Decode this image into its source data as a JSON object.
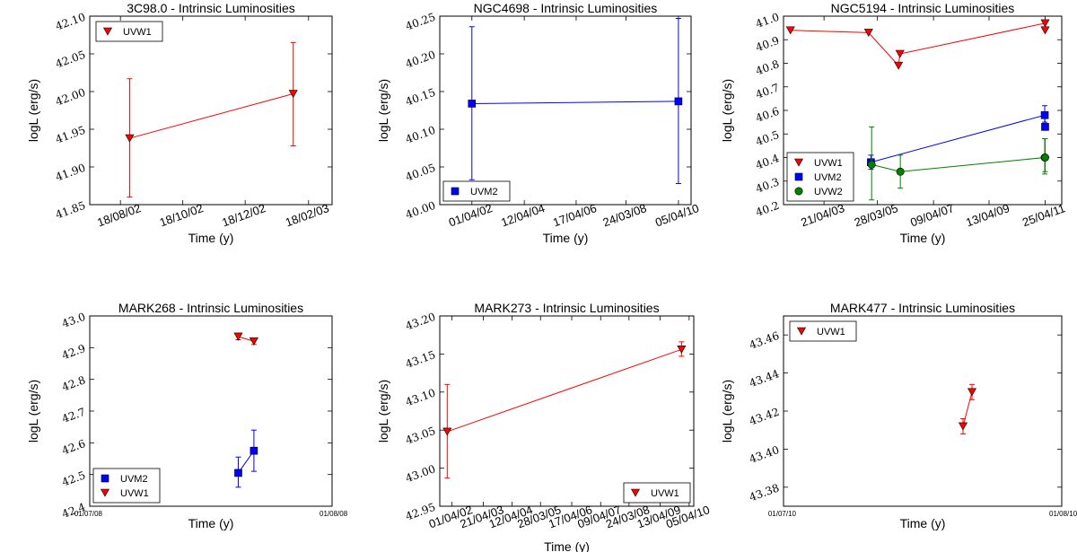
{
  "figure": {
    "ylabel": "logL (erg/s)",
    "xlabel": "Time (y)"
  },
  "chart_data": [
    {
      "type": "line",
      "title": "3C98.0 - Intrinsic Luminosities",
      "xlabel": "Time (y)",
      "ylabel": "logL (erg/s)",
      "x_is_date": true,
      "xlim": [
        "2002-07-19",
        "2003-03-13"
      ],
      "ylim": [
        41.85,
        42.1
      ],
      "xticks": [
        "2002-08-18",
        "2002-10-18",
        "2002-12-18",
        "2003-02-18"
      ],
      "xticklabels": [
        "18/08/02",
        "18/10/02",
        "18/12/02",
        "18/02/03"
      ],
      "xtick_rotation": 20,
      "yticks": [
        41.85,
        41.9,
        41.95,
        42.0,
        42.05,
        42.1
      ],
      "yticklabels": [
        "41.85",
        "41.90",
        "41.95",
        "42.00",
        "42.05",
        "42.10"
      ],
      "legend": "top-left",
      "series": [
        {
          "name": "UVW1",
          "color": "#ff0000",
          "marker": "triangle-down",
          "points": [
            {
              "x": "2002-08-27",
              "y": 41.938,
              "lo": 41.86,
              "hi": 42.017
            },
            {
              "x": "2003-02-03",
              "y": 41.997,
              "lo": 41.928,
              "hi": 42.065
            }
          ]
        }
      ]
    },
    {
      "type": "line",
      "title": "NGC4698 - Intrinsic Luminosities",
      "xlabel": "Time (y)",
      "ylabel": "logL (erg/s)",
      "x_is_date": true,
      "xlim": [
        "2001-01-01",
        "2010-10-01"
      ],
      "ylim": [
        40.0,
        40.25
      ],
      "xticks": [
        "2002-04-01",
        "2004-04-12",
        "2006-04-17",
        "2008-03-24",
        "2010-04-05"
      ],
      "xticklabels": [
        "01/04/02",
        "12/04/04",
        "17/04/06",
        "24/03/08",
        "05/04/10"
      ],
      "xtick_rotation": 20,
      "yticks": [
        40.0,
        40.05,
        40.1,
        40.15,
        40.2,
        40.25
      ],
      "yticklabels": [
        "40.00",
        "40.05",
        "40.10",
        "40.15",
        "40.20",
        "40.25"
      ],
      "legend": "bottom-left",
      "series": [
        {
          "name": "UVM2",
          "color": "#0000ff",
          "marker": "square",
          "points": [
            {
              "x": "2002-04-01",
              "y": 40.134,
              "lo": 40.033,
              "hi": 40.236
            },
            {
              "x": "2010-04-05",
              "y": 40.137,
              "lo": 40.028,
              "hi": 40.247
            }
          ]
        }
      ]
    },
    {
      "type": "line",
      "title": "NGC5194 - Intrinsic Luminosities",
      "xlabel": "Time (y)",
      "ylabel": "logL (erg/s)",
      "x_is_date": true,
      "xlim": [
        "2001-11-01",
        "2011-12-01"
      ],
      "ylim": [
        40.2,
        41.0
      ],
      "xticks": [
        "2003-04-21",
        "2005-03-28",
        "2007-04-09",
        "2009-04-13",
        "2011-04-25"
      ],
      "xticklabels": [
        "21/04/03",
        "28/03/05",
        "09/04/07",
        "13/04/09",
        "25/04/11"
      ],
      "xtick_rotation": 20,
      "yticks": [
        40.2,
        40.3,
        40.4,
        40.5,
        40.6,
        40.7,
        40.8,
        40.9,
        41.0
      ],
      "yticklabels": [
        "40.2",
        "40.3",
        "40.4",
        "40.5",
        "40.6",
        "40.7",
        "40.8",
        "40.9",
        "41.0"
      ],
      "legend": "bottom-left",
      "series": [
        {
          "name": "UVW1",
          "color": "#ff0000",
          "marker": "triangle-down",
          "points": [
            {
              "x": "2002-02-01",
              "y": 40.94
            },
            {
              "x": "2004-12-01",
              "y": 40.93
            },
            {
              "x": "2006-01-01",
              "y": 40.79
            },
            {
              "x": "2006-01-20",
              "y": 40.84
            },
            {
              "x": "2011-04-25",
              "y": 40.97
            },
            {
              "x": "2011-04-25",
              "y": 40.94
            }
          ]
        },
        {
          "name": "UVM2",
          "color": "#0000ff",
          "marker": "square",
          "points": [
            {
              "x": "2005-01-01",
              "y": 40.38,
              "lo": 40.35,
              "hi": 40.41
            },
            {
              "x": "2011-04-20",
              "y": 40.58,
              "lo": 40.55,
              "hi": 40.62
            },
            {
              "x": "2011-04-25",
              "y": 40.53
            }
          ]
        },
        {
          "name": "UVW2",
          "color": "#008000",
          "marker": "circle",
          "points": [
            {
              "x": "2005-01-10",
              "y": 40.37,
              "lo": 40.22,
              "hi": 40.53
            },
            {
              "x": "2006-01-25",
              "y": 40.34,
              "lo": 40.27,
              "hi": 40.41
            },
            {
              "x": "2011-04-20",
              "y": 40.4,
              "lo": 40.33,
              "hi": 40.48
            },
            {
              "x": "2011-04-25",
              "y": 40.4,
              "lo": 40.34,
              "hi": 40.48
            }
          ]
        }
      ]
    },
    {
      "type": "line",
      "title": "MARK268 - Intrinsic Luminosities",
      "xlabel": "Time (y)",
      "ylabel": "logL (erg/s)",
      "x_is_date": true,
      "xlim": [
        "2008-07-01",
        "2008-08-01"
      ],
      "ylim": [
        42.4,
        43.0
      ],
      "xticks": [
        "2008-07-01",
        "2008-08-01"
      ],
      "xticklabels": [
        "01/07/08",
        "01/08/08"
      ],
      "xtick_rotation": 0,
      "xtick_small": true,
      "yticks": [
        42.4,
        42.5,
        42.6,
        42.7,
        42.8,
        42.9,
        43.0
      ],
      "yticklabels": [
        "42.4",
        "42.5",
        "42.6",
        "42.7",
        "42.8",
        "42.9",
        "43.0"
      ],
      "legend": "bottom-left",
      "series": [
        {
          "name": "UVM2",
          "color": "#0000ff",
          "marker": "square",
          "points": [
            {
              "x": "2008-07-20",
              "y": 42.505,
              "lo": 42.46,
              "hi": 42.555
            },
            {
              "x": "2008-07-22",
              "y": 42.575,
              "lo": 42.51,
              "hi": 42.64
            }
          ]
        },
        {
          "name": "UVW1",
          "color": "#ff0000",
          "marker": "triangle-down",
          "points": [
            {
              "x": "2008-07-20",
              "y": 42.935,
              "lo": 42.925,
              "hi": 42.945
            },
            {
              "x": "2008-07-22",
              "y": 42.92,
              "lo": 42.91,
              "hi": 42.93
            }
          ]
        }
      ]
    },
    {
      "type": "line",
      "title": "MARK273 - Intrinsic Luminosities",
      "xlabel": "Time (y)",
      "ylabel": "logL (erg/s)",
      "x_is_date": true,
      "xlim": [
        "2001-11-01",
        "2010-06-01"
      ],
      "ylim": [
        42.95,
        43.2
      ],
      "xticks": [
        "2002-04-01",
        "2003-04-21",
        "2004-04-12",
        "2005-03-28",
        "2006-04-17",
        "2007-04-09",
        "2008-03-24",
        "2009-04-13",
        "2010-04-05"
      ],
      "xticklabels": [
        "01/04/02",
        "21/04/03",
        "12/04/04",
        "28/03/05",
        "17/04/06",
        "09/04/07",
        "24/03/08",
        "13/04/09",
        "05/04/10"
      ],
      "xtick_rotation": 20,
      "yticks": [
        42.95,
        43.0,
        43.05,
        43.1,
        43.15,
        43.2
      ],
      "yticklabels": [
        "42.95",
        "43.00",
        "43.05",
        "43.10",
        "43.15",
        "43.20"
      ],
      "legend": "bottom-right",
      "series": [
        {
          "name": "UVW1",
          "color": "#ff0000",
          "marker": "triangle-down",
          "points": [
            {
              "x": "2002-02-01",
              "y": 43.048,
              "lo": 42.987,
              "hi": 43.11
            },
            {
              "x": "2010-01-01",
              "y": 43.156,
              "lo": 43.147,
              "hi": 43.166
            }
          ]
        }
      ]
    },
    {
      "type": "line",
      "title": "MARK477 - Intrinsic Luminosities",
      "xlabel": "Time (y)",
      "ylabel": "logL (erg/s)",
      "x_is_date": true,
      "xlim": [
        "2010-07-01",
        "2010-08-01"
      ],
      "ylim": [
        43.37,
        43.47
      ],
      "xticks": [
        "2010-07-01",
        "2010-08-01"
      ],
      "xticklabels": [
        "01/07/10",
        "01/08/10"
      ],
      "xtick_rotation": 0,
      "xtick_small": true,
      "yticks": [
        43.38,
        43.4,
        43.42,
        43.44,
        43.46
      ],
      "yticklabels": [
        "43.38",
        "43.40",
        "43.42",
        "43.44",
        "43.46"
      ],
      "legend": "top-left",
      "series": [
        {
          "name": "UVW1",
          "color": "#ff0000",
          "marker": "triangle-down",
          "points": [
            {
              "x": "2010-07-21",
              "y": 43.412,
              "lo": 43.408,
              "hi": 43.416
            },
            {
              "x": "2010-07-22",
              "y": 43.43,
              "lo": 43.426,
              "hi": 43.434
            }
          ]
        }
      ]
    }
  ]
}
